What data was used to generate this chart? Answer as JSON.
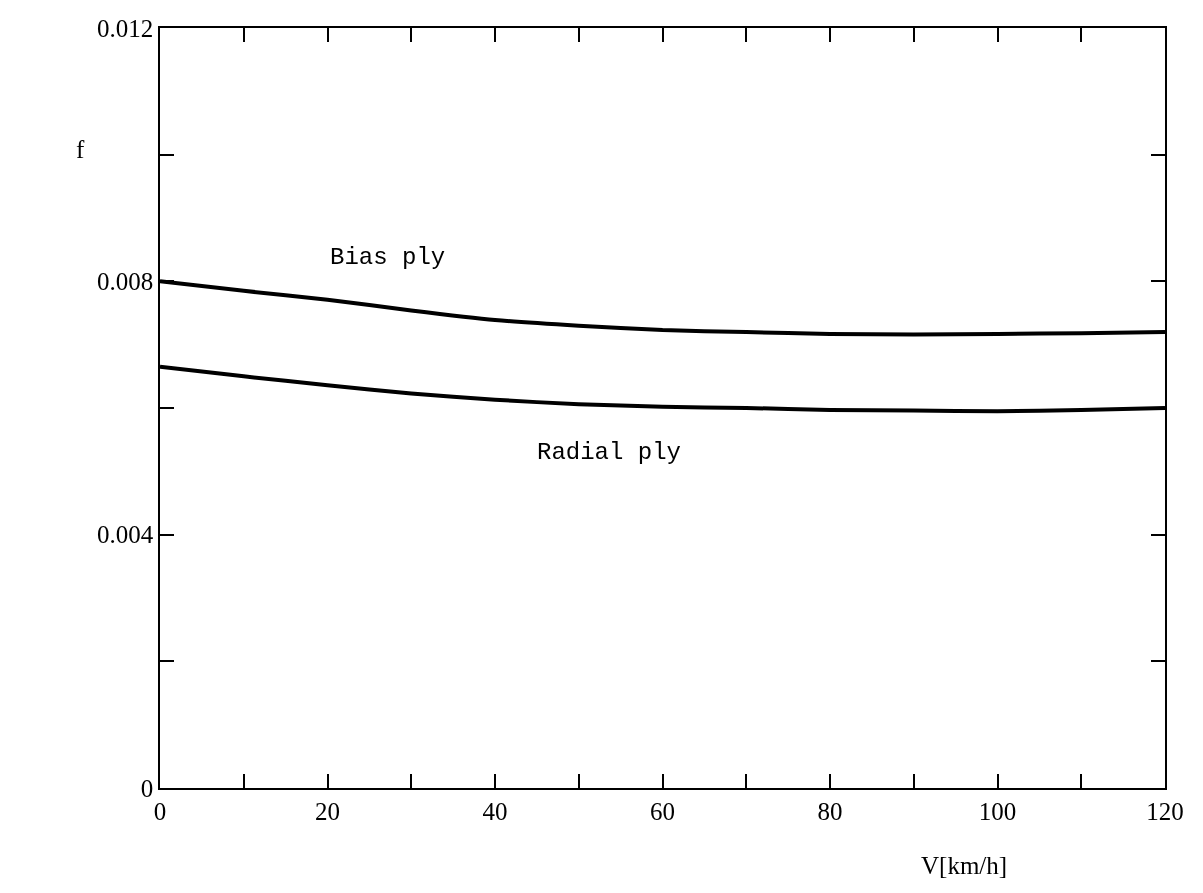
{
  "chart_data": {
    "type": "line",
    "xlabel": "V[km/h]",
    "ylabel": "f",
    "x": [
      0,
      10,
      20,
      30,
      40,
      50,
      60,
      70,
      80,
      90,
      100,
      110,
      120
    ],
    "series": [
      {
        "name": "Bias ply",
        "color": "#000000",
        "values": [
          0.008,
          0.00785,
          0.00771,
          0.00754,
          0.00739,
          0.0073,
          0.00723,
          0.0072,
          0.00717,
          0.00716,
          0.00717,
          0.00718,
          0.0072
        ]
      },
      {
        "name": "Radial ply",
        "color": "#000000",
        "values": [
          0.00665,
          0.0065,
          0.00636,
          0.00623,
          0.00613,
          0.00606,
          0.00602,
          0.006,
          0.00597,
          0.00596,
          0.00595,
          0.00597,
          0.006
        ]
      }
    ],
    "xlim": [
      0,
      120
    ],
    "ylim": [
      0,
      0.012
    ],
    "xticks": [
      0,
      {
        "value": 10,
        "label": null
      },
      20,
      {
        "value": 30,
        "label": null
      },
      40,
      {
        "value": 50,
        "label": null
      },
      60,
      {
        "value": 70,
        "label": null
      },
      80,
      {
        "value": 90,
        "label": null
      },
      100,
      {
        "value": 110,
        "label": null
      },
      120
    ],
    "yticks": [
      0,
      {
        "value": 0.002,
        "label": null
      },
      0.004,
      {
        "value": 0.006,
        "label": null
      },
      0.008,
      {
        "value": 0.01,
        "label": null
      },
      0.012
    ],
    "grid": false,
    "legend": false,
    "marker": "none",
    "line_style": "solid"
  }
}
